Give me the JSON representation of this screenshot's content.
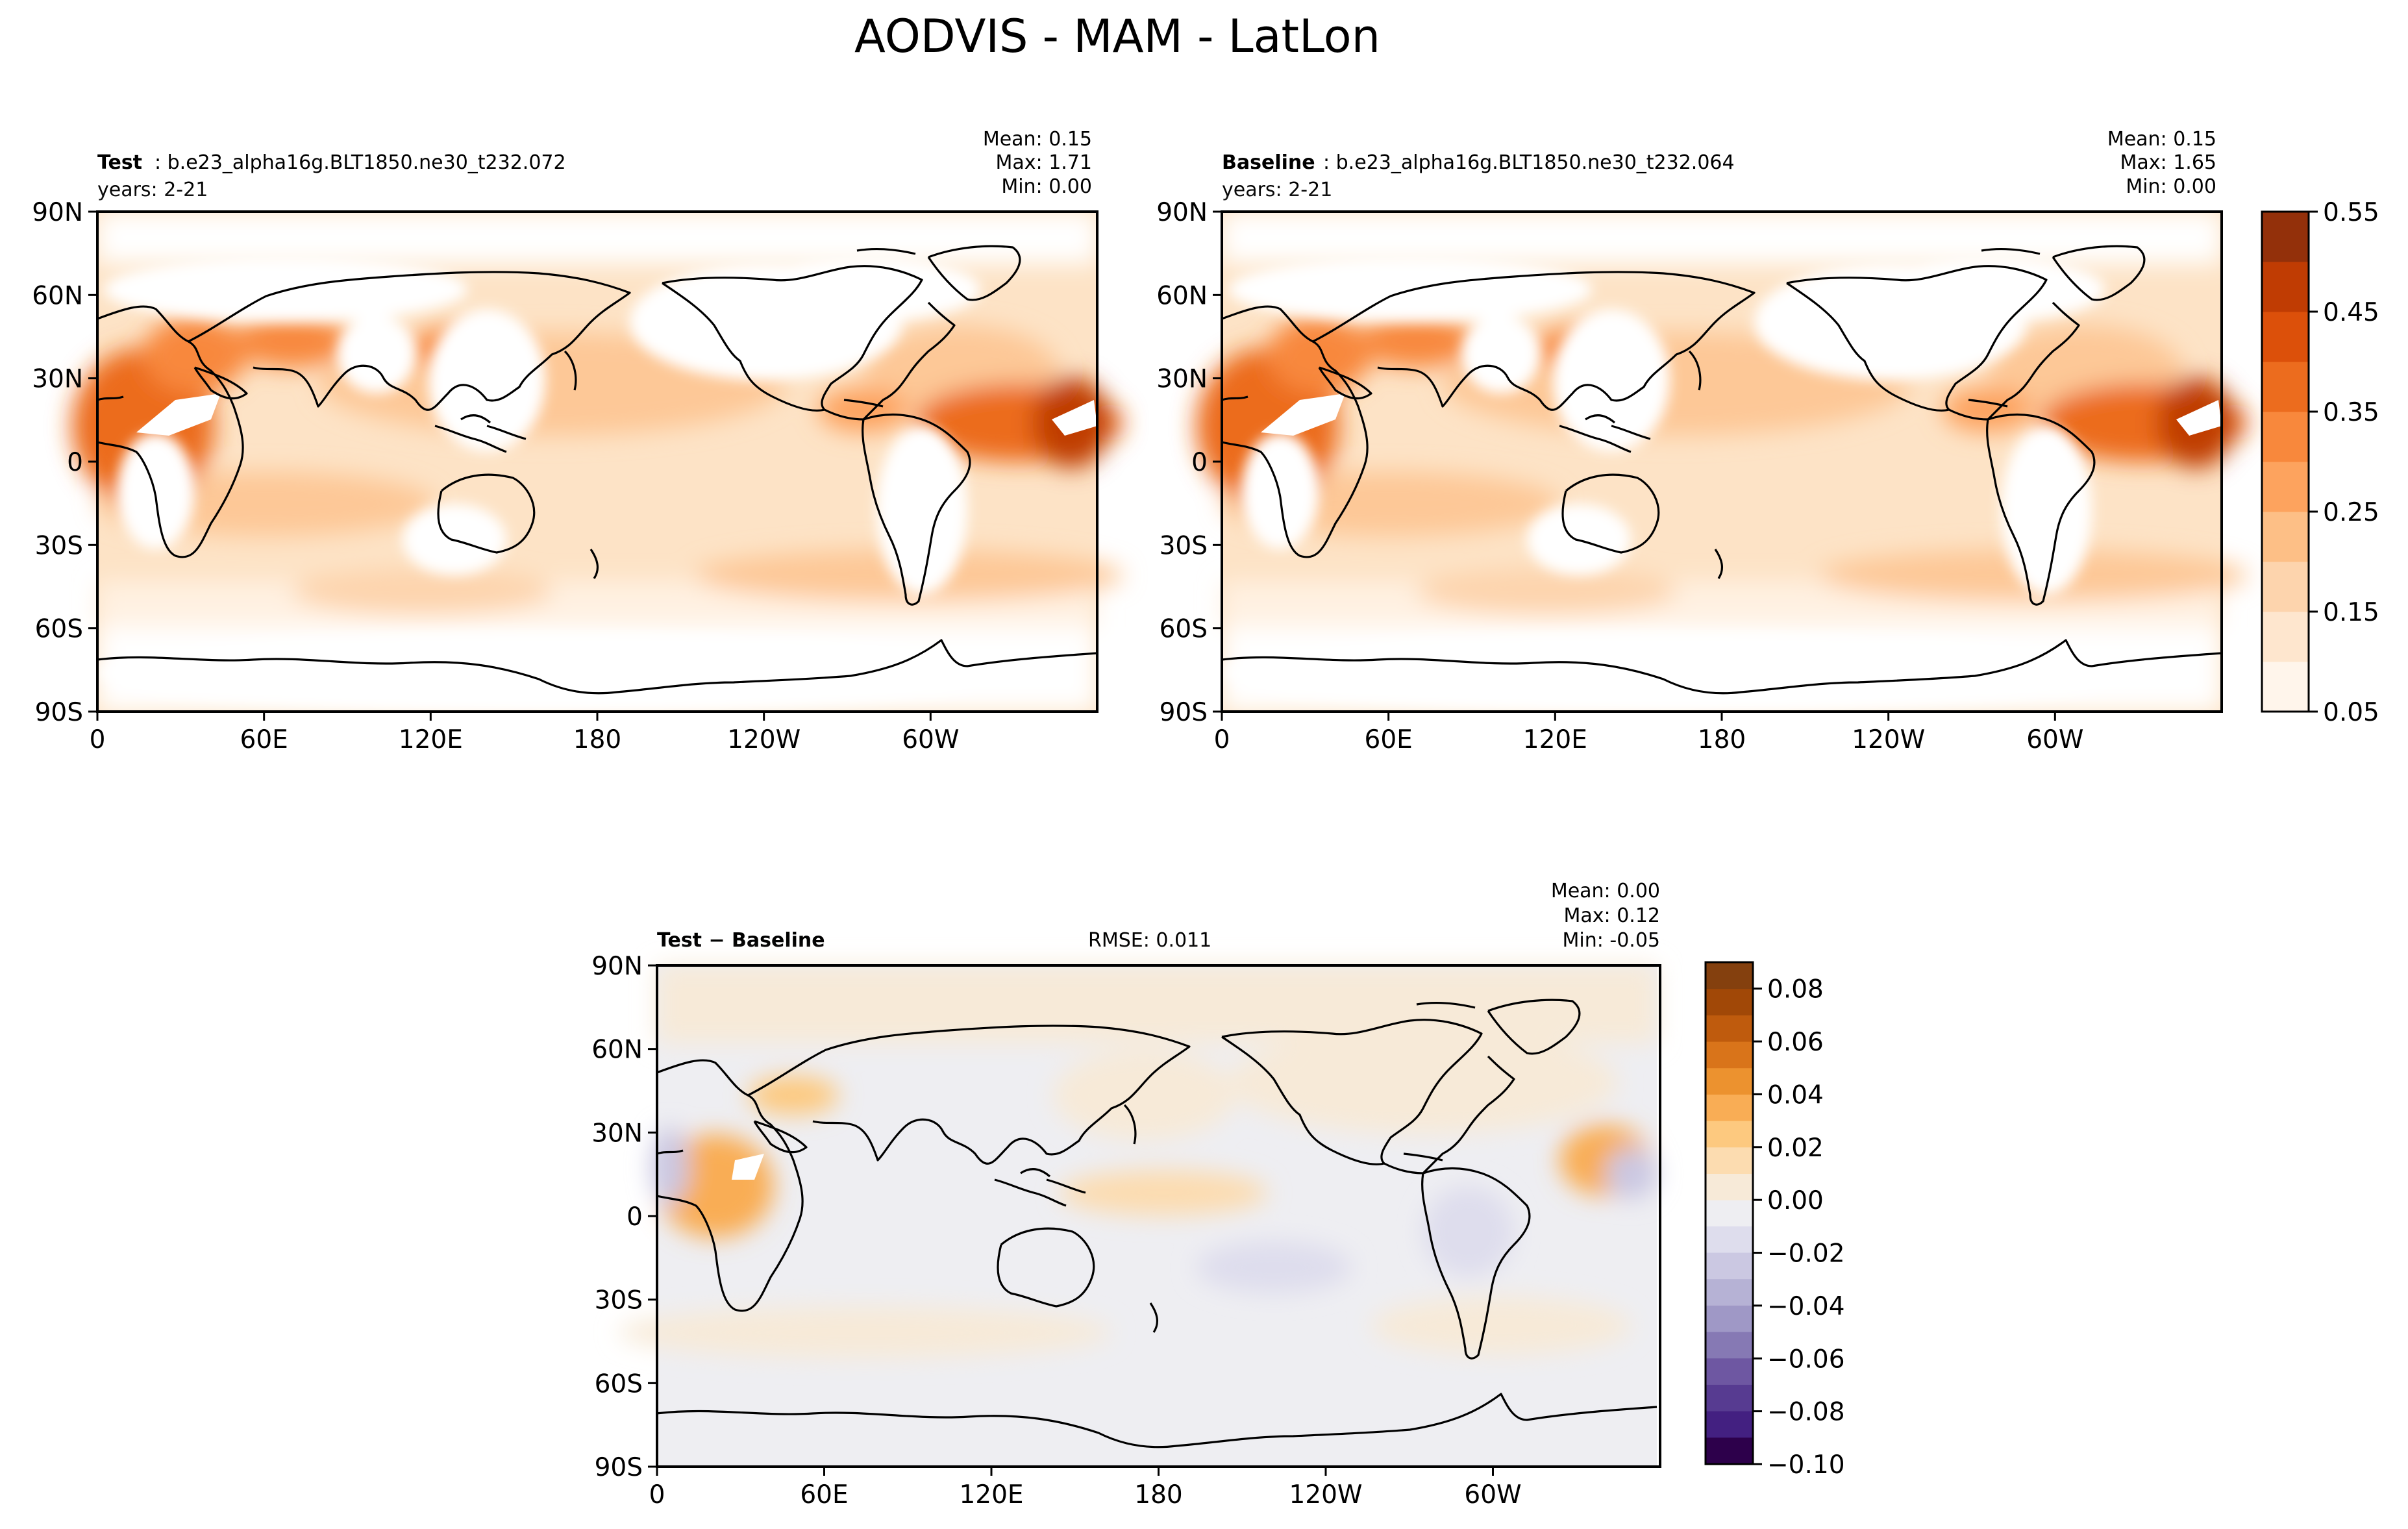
{
  "figure": {
    "suptitle": "AODVIS - MAM - LatLon"
  },
  "chart_data": [
    {
      "type": "heatmap",
      "panel": "test",
      "label_bold": "Test",
      "label_text": ": b.e23_alpha16g.BLT1850.ne30_t232.072",
      "years": "years: 2-21",
      "stats": {
        "mean": "Mean:  0.15",
        "max": "Max:  1.71",
        "min": "Min:  0.00"
      },
      "x_ticks": [
        "0",
        "60E",
        "120E",
        "180",
        "120W",
        "60W"
      ],
      "y_ticks": [
        "90N",
        "60N",
        "30N",
        "0",
        "30S",
        "60S",
        "90S"
      ],
      "xlim": [
        0,
        360
      ],
      "ylim": [
        -90,
        90
      ],
      "colorbar": {
        "ticks": [
          "0.55",
          "0.45",
          "0.35",
          "0.25",
          "0.15",
          "0.05"
        ],
        "range": [
          0.05,
          0.55
        ],
        "levels": 10
      }
    },
    {
      "type": "heatmap",
      "panel": "baseline",
      "label_bold": "Baseline",
      "label_text": ": b.e23_alpha16g.BLT1850.ne30_t232.064",
      "years": "years: 2-21",
      "stats": {
        "mean": "Mean:  0.15",
        "max": "Max:  1.65",
        "min": "Min:  0.00"
      },
      "x_ticks": [
        "0",
        "60E",
        "120E",
        "180",
        "120W",
        "60W"
      ],
      "y_ticks": [
        "90N",
        "60N",
        "30N",
        "0",
        "30S",
        "60S",
        "90S"
      ],
      "xlim": [
        0,
        360
      ],
      "ylim": [
        -90,
        90
      ]
    },
    {
      "type": "heatmap",
      "panel": "difference",
      "label_bold": "Test − Baseline",
      "rmse": "RMSE: 0.011",
      "stats": {
        "mean": "Mean:  0.00",
        "max": "Max:  0.12",
        "min": "Min: -0.05"
      },
      "x_ticks": [
        "0",
        "60E",
        "120E",
        "180",
        "120W",
        "60W"
      ],
      "y_ticks": [
        "90N",
        "60N",
        "30N",
        "0",
        "30S",
        "60S",
        "90S"
      ],
      "xlim": [
        0,
        360
      ],
      "ylim": [
        -90,
        90
      ],
      "colorbar": {
        "ticks": [
          "0.08",
          "0.06",
          "0.04",
          "0.02",
          "0.00",
          "−0.02",
          "−0.04",
          "−0.06",
          "−0.08",
          "−0.10"
        ],
        "range": [
          -0.1,
          0.09
        ],
        "levels": 19
      }
    }
  ],
  "colors": {
    "orange_scale": [
      "#fff5eb",
      "#fee6ce",
      "#fdd4ad",
      "#fdbf86",
      "#fda35e",
      "#f8883c",
      "#ec6c1e",
      "#dc500a",
      "#c03c03",
      "#93300a"
    ],
    "div_pos": [
      "#f7ead8",
      "#fcdcb0",
      "#fdc97f",
      "#f9ad55",
      "#ec922f",
      "#d9741a",
      "#bf5b0d",
      "#a14807",
      "#84400e"
    ],
    "div_neg": [
      "#eeeef2",
      "#dedded",
      "#cbc8e2",
      "#b6b2d5",
      "#9f98c6",
      "#8679b4",
      "#6e57a2",
      "#573b91",
      "#432081",
      "#2d004b"
    ]
  }
}
